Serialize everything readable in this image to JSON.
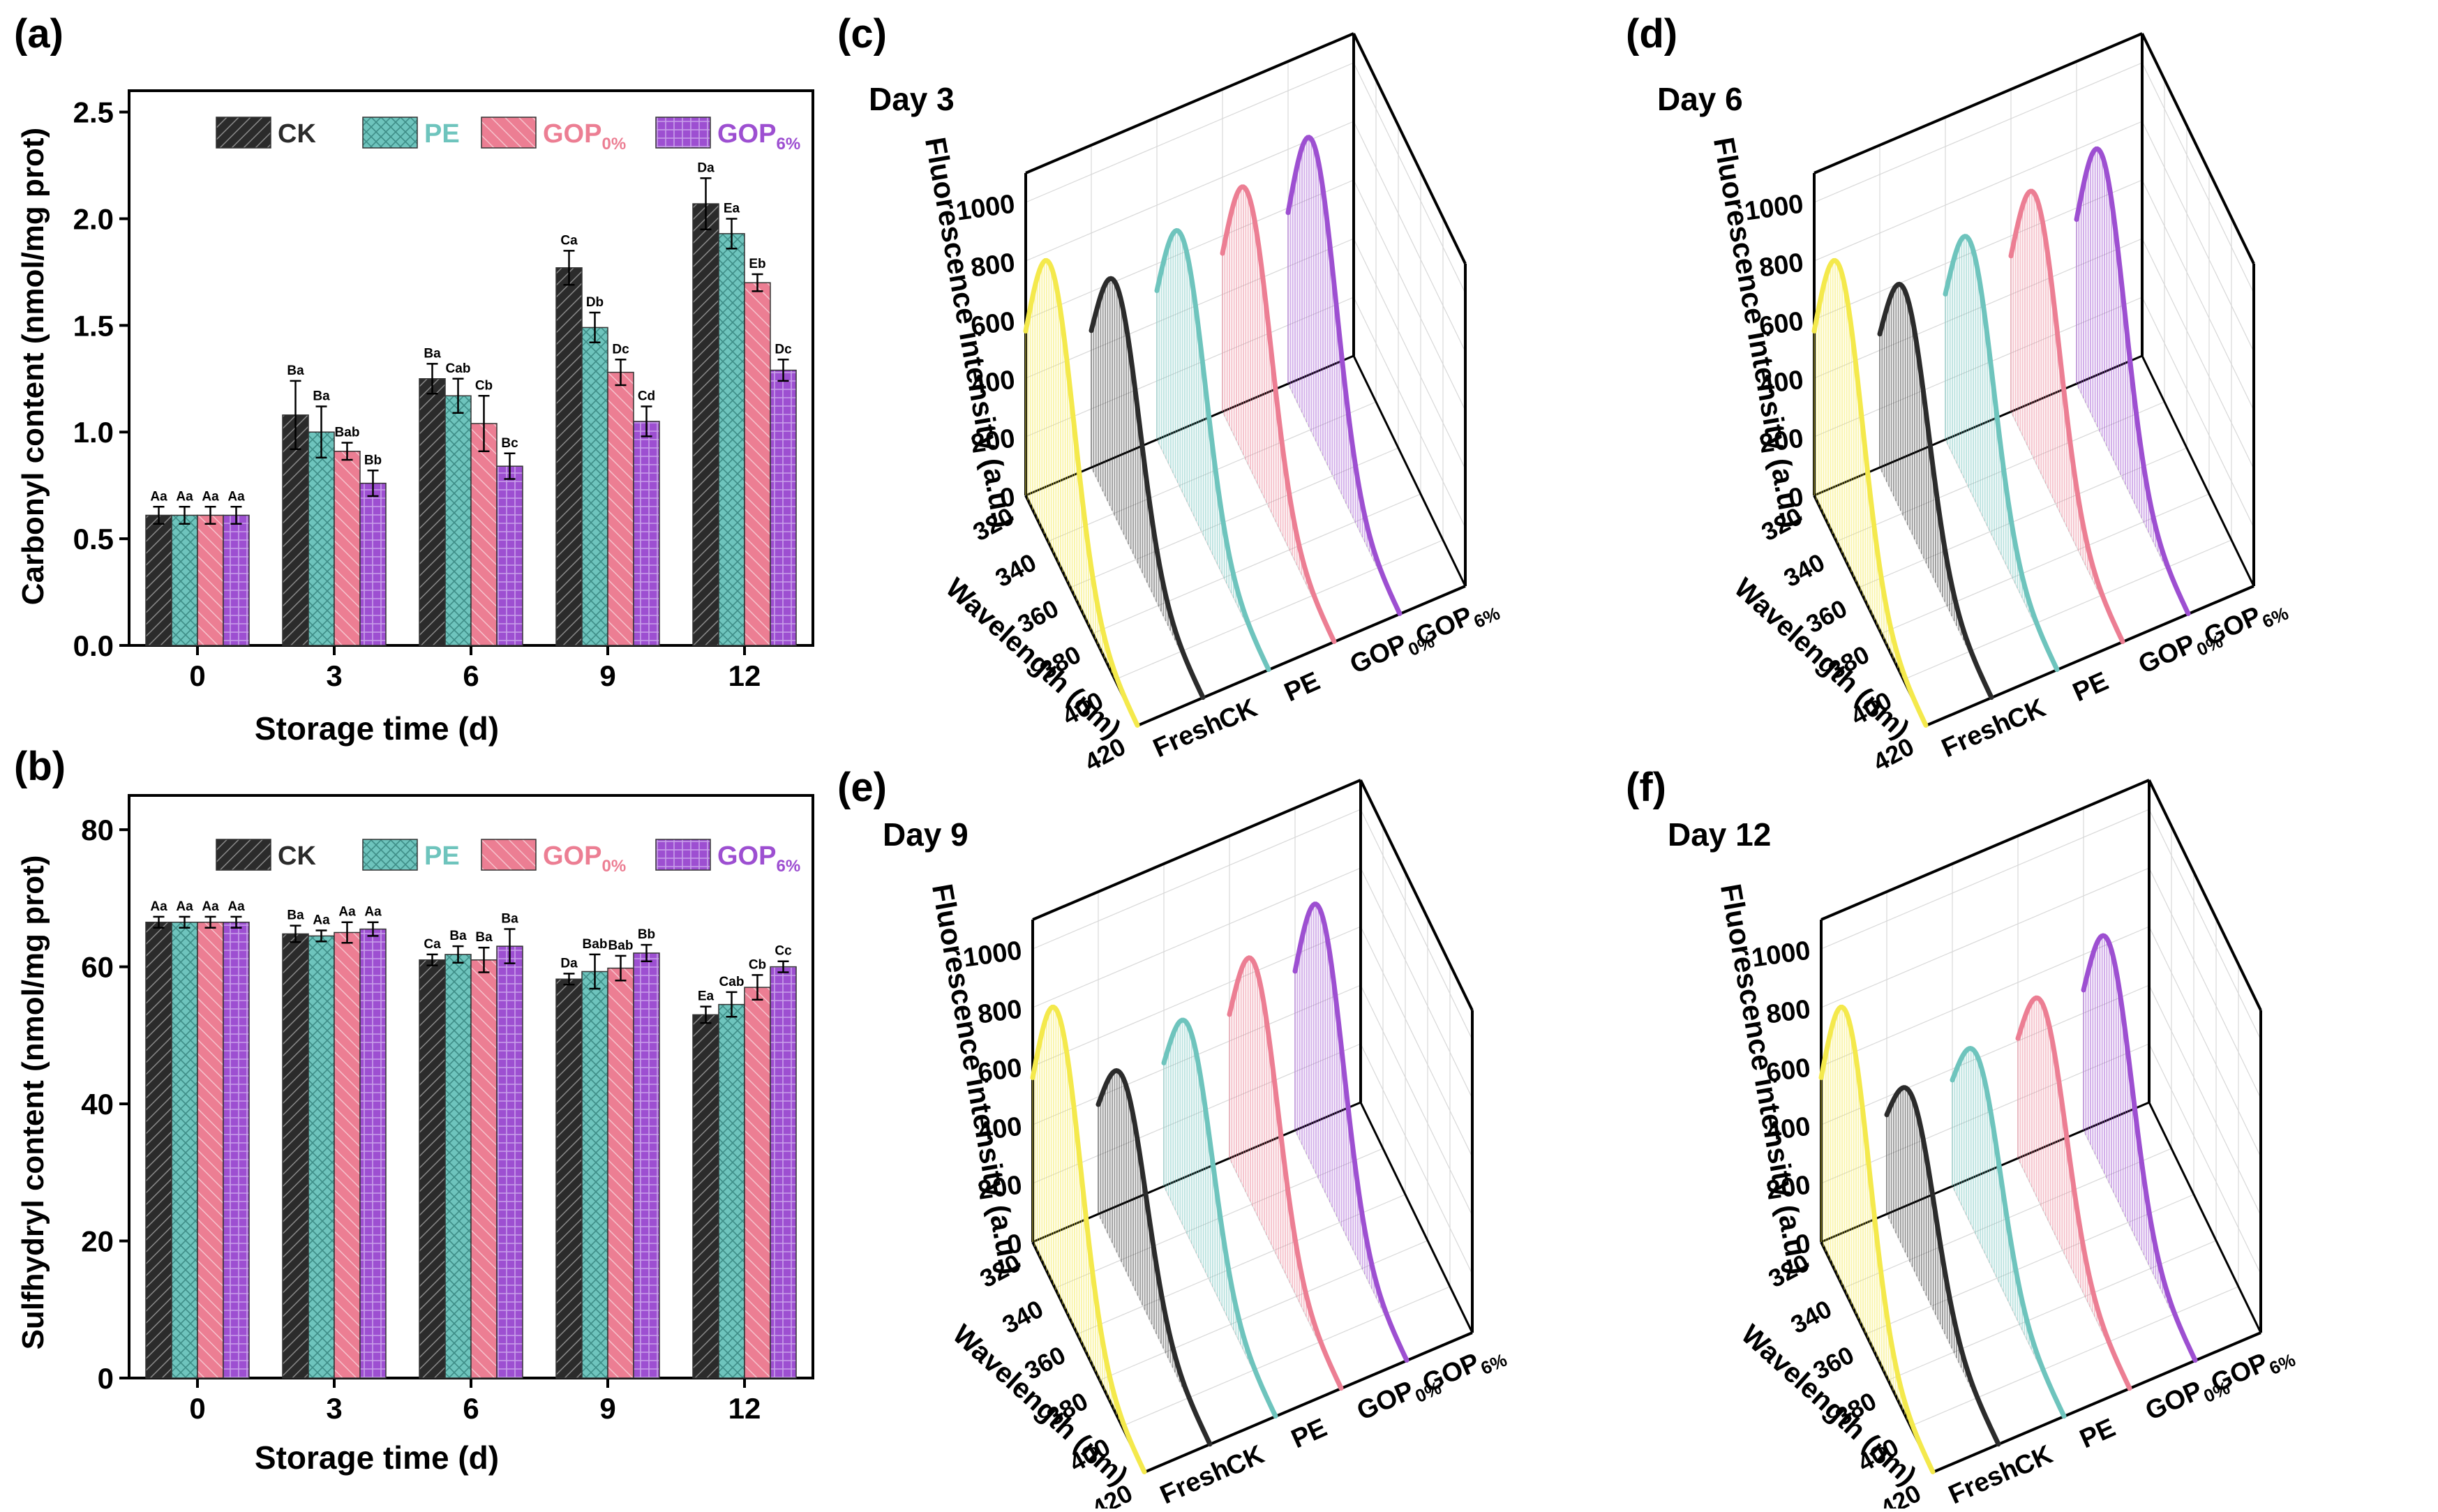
{
  "colors": {
    "CK": "#2b2b2b",
    "PE": "#6ec4bd",
    "GOP0": "#ec7e93",
    "GOP6": "#9d4fd1",
    "Fresh": "#f4e94c"
  },
  "legend": [
    {
      "key": "CK",
      "main": "CK",
      "sub": ""
    },
    {
      "key": "PE",
      "main": "PE",
      "sub": ""
    },
    {
      "key": "GOP0",
      "main": "GOP",
      "sub": "0%"
    },
    {
      "key": "GOP6",
      "main": "GOP",
      "sub": "6%"
    }
  ],
  "chart_data": [
    {
      "panel": "(a)",
      "type": "bar",
      "xlabel": "Storage time (d)",
      "ylabel": "Carbonyl content (nmol/mg prot)",
      "ylim": [
        0,
        2.6
      ],
      "yticks": [
        "0.0",
        "0.5",
        "1.0",
        "1.5",
        "2.0",
        "2.5"
      ],
      "categories": [
        "0",
        "3",
        "6",
        "9",
        "12"
      ],
      "series": [
        {
          "name": "CK",
          "key": "CK",
          "values": [
            0.61,
            1.08,
            1.25,
            1.77,
            2.07
          ],
          "errors": [
            0.04,
            0.16,
            0.07,
            0.08,
            0.12
          ],
          "letters": [
            "Aa",
            "Ba",
            "Ba",
            "Ca",
            "Da"
          ]
        },
        {
          "name": "PE",
          "key": "PE",
          "values": [
            0.61,
            1.0,
            1.17,
            1.49,
            1.93
          ],
          "errors": [
            0.04,
            0.12,
            0.08,
            0.07,
            0.07
          ],
          "letters": [
            "Aa",
            "Ba",
            "Cab",
            "Db",
            "Ea"
          ]
        },
        {
          "name": "GOP0%",
          "key": "GOP0",
          "values": [
            0.61,
            0.91,
            1.04,
            1.28,
            1.7
          ],
          "errors": [
            0.04,
            0.04,
            0.13,
            0.06,
            0.04
          ],
          "letters": [
            "Aa",
            "Bab",
            "Cb",
            "Dc",
            "Eb"
          ]
        },
        {
          "name": "GOP6%",
          "key": "GOP6",
          "values": [
            0.61,
            0.76,
            0.84,
            1.05,
            1.29
          ],
          "errors": [
            0.04,
            0.06,
            0.06,
            0.07,
            0.05
          ],
          "letters": [
            "Aa",
            "Bb",
            "Bc",
            "Cd",
            "Dc"
          ]
        }
      ]
    },
    {
      "panel": "(b)",
      "type": "bar",
      "xlabel": "Storage time (d)",
      "ylabel": "Sulfhydryl content (nmol/mg prot)",
      "ylim": [
        0,
        85
      ],
      "yticks": [
        "0",
        "20",
        "40",
        "60",
        "80"
      ],
      "categories": [
        "0",
        "3",
        "6",
        "9",
        "12"
      ],
      "series": [
        {
          "name": "CK",
          "key": "CK",
          "values": [
            66.5,
            64.8,
            61.0,
            58.2,
            53.0
          ],
          "errors": [
            0.8,
            1.2,
            0.8,
            0.8,
            1.2
          ],
          "letters": [
            "Aa",
            "Ba",
            "Ca",
            "Da",
            "Ea"
          ]
        },
        {
          "name": "PE",
          "key": "PE",
          "values": [
            66.5,
            64.5,
            61.8,
            59.3,
            54.5
          ],
          "errors": [
            0.8,
            0.8,
            1.2,
            2.5,
            1.8
          ],
          "letters": [
            "Aa",
            "Aa",
            "Ba",
            "Bab",
            "Cab"
          ]
        },
        {
          "name": "GOP0%",
          "key": "GOP0",
          "values": [
            66.5,
            65.0,
            61.0,
            59.8,
            57.0
          ],
          "errors": [
            0.8,
            1.5,
            1.8,
            1.8,
            1.8
          ],
          "letters": [
            "Aa",
            "Aa",
            "Ba",
            "Bab",
            "Cb"
          ]
        },
        {
          "name": "GOP6%",
          "key": "GOP6",
          "values": [
            66.5,
            65.5,
            63.0,
            62.0,
            60.0
          ],
          "errors": [
            0.8,
            1.0,
            2.5,
            1.2,
            0.8
          ],
          "letters": [
            "Aa",
            "Aa",
            "Ba",
            "Bb",
            "Cc"
          ]
        }
      ]
    },
    {
      "panel": "(c)",
      "type": "line",
      "title": "Day 3",
      "zlabel": "Fluorescence intensity (a.u.)",
      "xlabel": "Wavelength (nm)",
      "zticks": [
        "0",
        "200",
        "400",
        "600",
        "800",
        "1000"
      ],
      "xticks": [
        "320",
        "340",
        "360",
        "380",
        "400",
        "420"
      ],
      "series": [
        {
          "name": "Fresh",
          "key": "Fresh",
          "peak": 960
        },
        {
          "name": "CK",
          "key": "CK",
          "peak": 800
        },
        {
          "name": "PE",
          "key": "PE",
          "peak": 870
        },
        {
          "name": "GOP0%",
          "key": "GOP0",
          "peak": 925
        },
        {
          "name": "GOP6%",
          "key": "GOP6",
          "peak": 1000
        }
      ]
    },
    {
      "panel": "(d)",
      "type": "line",
      "title": "Day 6",
      "zlabel": "Fluorescence intensity (a.u.)",
      "xlabel": "Wavelength (nm)",
      "zticks": [
        "0",
        "200",
        "400",
        "600",
        "800",
        "1000"
      ],
      "xticks": [
        "320",
        "340",
        "360",
        "380",
        "400",
        "420"
      ],
      "series": [
        {
          "name": "Fresh",
          "key": "Fresh",
          "peak": 960
        },
        {
          "name": "CK",
          "key": "CK",
          "peak": 780
        },
        {
          "name": "PE",
          "key": "PE",
          "peak": 850
        },
        {
          "name": "GOP0%",
          "key": "GOP0",
          "peak": 910
        },
        {
          "name": "GOP6%",
          "key": "GOP6",
          "peak": 960
        }
      ]
    },
    {
      "panel": "(e)",
      "type": "line",
      "title": "Day 9",
      "zlabel": "Fluorescence intensity (a.u.)",
      "xlabel": "Wavelength (nm)",
      "zticks": [
        "0",
        "200",
        "400",
        "600",
        "800",
        "1000"
      ],
      "xticks": [
        "320",
        "340",
        "360",
        "380",
        "400",
        "420"
      ],
      "series": [
        {
          "name": "Fresh",
          "key": "Fresh",
          "peak": 960
        },
        {
          "name": "CK",
          "key": "CK",
          "peak": 640
        },
        {
          "name": "PE",
          "key": "PE",
          "peak": 720
        },
        {
          "name": "GOP0%",
          "key": "GOP0",
          "peak": 840
        },
        {
          "name": "GOP6%",
          "key": "GOP6",
          "peak": 930
        }
      ]
    },
    {
      "panel": "(f)",
      "type": "line",
      "title": "Day 12",
      "zlabel": "Fluorescence intensity (a.u.)",
      "xlabel": "Wavelength (nm)",
      "zticks": [
        "0",
        "200",
        "400",
        "600",
        "800",
        "1000"
      ],
      "xticks": [
        "320",
        "340",
        "360",
        "380",
        "400",
        "420"
      ],
      "series": [
        {
          "name": "Fresh",
          "key": "Fresh",
          "peak": 960
        },
        {
          "name": "CK",
          "key": "CK",
          "peak": 580
        },
        {
          "name": "PE",
          "key": "PE",
          "peak": 620
        },
        {
          "name": "GOP0%",
          "key": "GOP0",
          "peak": 700
        },
        {
          "name": "GOP6%",
          "key": "GOP6",
          "peak": 820
        }
      ]
    }
  ]
}
